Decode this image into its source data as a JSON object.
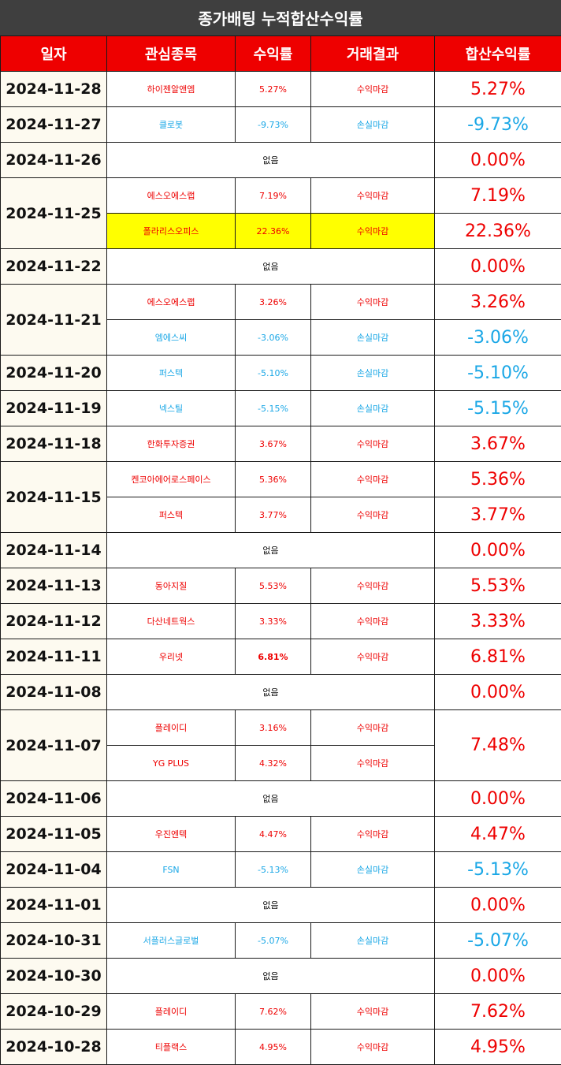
{
  "title": "종가배팅 누적합산수익률",
  "headers": [
    "일자",
    "관심종목",
    "수익률",
    "거래결과",
    "합산수익률"
  ],
  "days": [
    {
      "date": "2024-11-28",
      "trades": [
        {
          "name": "하이젠알앤엠",
          "rate": "5.27%",
          "result": "수익마감"
        }
      ],
      "total": "5.27%",
      "total_per_trade": false
    },
    {
      "date": "2024-11-27",
      "trades": [
        {
          "name": "클로봇",
          "rate": "-9.73%",
          "result": "손실마감"
        }
      ],
      "total": "-9.73%",
      "total_per_trade": false
    },
    {
      "date": "2024-11-26",
      "none": "없음",
      "total": "0.00%"
    },
    {
      "date": "2024-11-25",
      "trades": [
        {
          "name": "에스오에스랩",
          "rate": "7.19%",
          "result": "수익마감",
          "total": "7.19%"
        },
        {
          "name": "폴라리스오피스",
          "rate": "22.36%",
          "result": "수익마감",
          "total": "22.36%",
          "highlight": true
        }
      ],
      "total_per_trade": true
    },
    {
      "date": "2024-11-22",
      "none": "없음",
      "total": "0.00%"
    },
    {
      "date": "2024-11-21",
      "trades": [
        {
          "name": "에스오에스랩",
          "rate": "3.26%",
          "result": "수익마감",
          "total": "3.26%"
        },
        {
          "name": "엠에스씨",
          "rate": "-3.06%",
          "result": "손실마감",
          "total": "-3.06%"
        }
      ],
      "total_per_trade": true
    },
    {
      "date": "2024-11-20",
      "trades": [
        {
          "name": "퍼스텍",
          "rate": "-5.10%",
          "result": "손실마감"
        }
      ],
      "total": "-5.10%",
      "total_per_trade": false
    },
    {
      "date": "2024-11-19",
      "trades": [
        {
          "name": "넥스틸",
          "rate": "-5.15%",
          "result": "손실마감"
        }
      ],
      "total": "-5.15%",
      "total_per_trade": false
    },
    {
      "date": "2024-11-18",
      "trades": [
        {
          "name": "한화투자증권",
          "rate": "3.67%",
          "result": "수익마감"
        }
      ],
      "total": "3.67%",
      "total_per_trade": false
    },
    {
      "date": "2024-11-15",
      "trades": [
        {
          "name": "켄코아에어로스페이스",
          "rate": "5.36%",
          "result": "수익마감",
          "total": "5.36%"
        },
        {
          "name": "퍼스텍",
          "rate": "3.77%",
          "result": "수익마감",
          "total": "3.77%"
        }
      ],
      "total_per_trade": true
    },
    {
      "date": "2024-11-14",
      "none": "없음",
      "total": "0.00%"
    },
    {
      "date": "2024-11-13",
      "trades": [
        {
          "name": "동아지질",
          "rate": "5.53%",
          "result": "수익마감"
        }
      ],
      "total": "5.53%",
      "total_per_trade": false
    },
    {
      "date": "2024-11-12",
      "trades": [
        {
          "name": "다산네트웍스",
          "rate": "3.33%",
          "result": "수익마감"
        }
      ],
      "total": "3.33%",
      "total_per_trade": false
    },
    {
      "date": "2024-11-11",
      "trades": [
        {
          "name": "우리넷",
          "rate": "6.81%",
          "result": "수익마감",
          "bold": true
        }
      ],
      "total": "6.81%",
      "total_per_trade": false
    },
    {
      "date": "2024-11-08",
      "none": "없음",
      "total": "0.00%"
    },
    {
      "date": "2024-11-07",
      "trades": [
        {
          "name": "플레이디",
          "rate": "3.16%",
          "result": "수익마감"
        },
        {
          "name": "YG PLUS",
          "rate": "4.32%",
          "result": "수익마감"
        }
      ],
      "total": "7.48%",
      "total_per_trade": false
    },
    {
      "date": "2024-11-06",
      "none": "없음",
      "total": "0.00%"
    },
    {
      "date": "2024-11-05",
      "trades": [
        {
          "name": "우진엔텍",
          "rate": "4.47%",
          "result": "수익마감"
        }
      ],
      "total": "4.47%",
      "total_per_trade": false
    },
    {
      "date": "2024-11-04",
      "trades": [
        {
          "name": "FSN",
          "rate": "-5.13%",
          "result": "손실마감"
        }
      ],
      "total": "-5.13%",
      "total_per_trade": false
    },
    {
      "date": "2024-11-01",
      "none": "없음",
      "total": "0.00%"
    },
    {
      "date": "2024-10-31",
      "trades": [
        {
          "name": "서플러스글로벌",
          "rate": "-5.07%",
          "result": "손실마감"
        }
      ],
      "total": "-5.07%",
      "total_per_trade": false
    },
    {
      "date": "2024-10-30",
      "none": "없음",
      "total": "0.00%"
    },
    {
      "date": "2024-10-29",
      "trades": [
        {
          "name": "플레이디",
          "rate": "7.62%",
          "result": "수익마감"
        }
      ],
      "total": "7.62%",
      "total_per_trade": false
    },
    {
      "date": "2024-10-28",
      "trades": [
        {
          "name": "티플랙스",
          "rate": "4.95%",
          "result": "수익마감"
        }
      ],
      "total": "4.95%",
      "total_per_trade": false
    }
  ],
  "colors": {
    "header_bg": "#ee0000",
    "title_bg": "#3f3f3f",
    "profit": "#ee0000",
    "loss": "#1aa7e6",
    "highlight": "#ffff00",
    "date_bg": "#fdfaf0"
  }
}
